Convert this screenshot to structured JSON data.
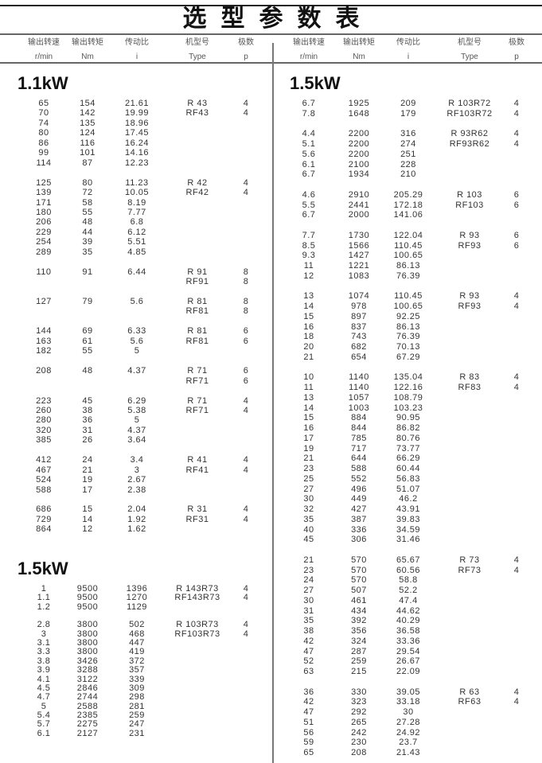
{
  "title": "选型参数表",
  "columns": [
    {
      "cn": "输出转速",
      "en": "r/min"
    },
    {
      "cn": "输出转矩",
      "en": "Nm"
    },
    {
      "cn": "传动比",
      "en": "i"
    },
    {
      "cn": "机型号",
      "en": "Type"
    },
    {
      "cn": "极数",
      "en": "p"
    }
  ],
  "sections": [
    {
      "title": "1.1kW",
      "groups": [
        {
          "types": [
            "R 43",
            "RF43"
          ],
          "poles": [
            "4",
            "4"
          ],
          "rows": [
            [
              "65",
              "154",
              "21.61"
            ],
            [
              "70",
              "142",
              "19.99"
            ],
            [
              "74",
              "135",
              "18.96"
            ],
            [
              "80",
              "124",
              "17.45"
            ],
            [
              "86",
              "116",
              "16.24"
            ],
            [
              "99",
              "101",
              "14.16"
            ],
            [
              "114",
              "87",
              "12.23"
            ]
          ]
        },
        {
          "types": [
            "R 42",
            "RF42"
          ],
          "poles": [
            "4",
            "4"
          ],
          "rows": [
            [
              "125",
              "80",
              "11.23"
            ],
            [
              "139",
              "72",
              "10.05"
            ],
            [
              "171",
              "58",
              "8.19"
            ],
            [
              "180",
              "55",
              "7.77"
            ],
            [
              "206",
              "48",
              "6.8"
            ],
            [
              "229",
              "44",
              "6.12"
            ],
            [
              "254",
              "39",
              "5.51"
            ],
            [
              "289",
              "35",
              "4.85"
            ]
          ]
        },
        {
          "types": [
            "R 91",
            "RF91"
          ],
          "poles": [
            "8",
            "8"
          ],
          "rows": [
            [
              "110",
              "91",
              "6.44"
            ],
            [
              "",
              "",
              ""
            ]
          ]
        },
        {
          "types": [
            "R 81",
            "RF81"
          ],
          "poles": [
            "8",
            "8"
          ],
          "rows": [
            [
              "127",
              "79",
              "5.6"
            ],
            [
              "",
              "",
              ""
            ]
          ]
        },
        {
          "types": [
            "R 81",
            "RF81"
          ],
          "poles": [
            "6",
            "6"
          ],
          "rows": [
            [
              "144",
              "69",
              "6.33"
            ],
            [
              "163",
              "61",
              "5.6"
            ],
            [
              "182",
              "55",
              "5"
            ]
          ]
        },
        {
          "types": [
            "R 71",
            "RF71"
          ],
          "poles": [
            "6",
            "6"
          ],
          "rows": [
            [
              "208",
              "48",
              "4.37"
            ],
            [
              "",
              "",
              ""
            ]
          ]
        },
        {
          "types": [
            "R 71",
            "RF71"
          ],
          "poles": [
            "4",
            "4"
          ],
          "rows": [
            [
              "223",
              "45",
              "6.29"
            ],
            [
              "260",
              "38",
              "5.38"
            ],
            [
              "280",
              "36",
              "5"
            ],
            [
              "320",
              "31",
              "4.37"
            ],
            [
              "385",
              "26",
              "3.64"
            ]
          ]
        },
        {
          "types": [
            "R 41",
            "RF41"
          ],
          "poles": [
            "4",
            "4"
          ],
          "rows": [
            [
              "412",
              "24",
              "3.4"
            ],
            [
              "467",
              "21",
              "3"
            ],
            [
              "524",
              "19",
              "2.67"
            ],
            [
              "588",
              "17",
              "2.38"
            ]
          ]
        },
        {
          "types": [
            "R 31",
            "RF31"
          ],
          "poles": [
            "4",
            "4"
          ],
          "rows": [
            [
              "686",
              "15",
              "2.04"
            ],
            [
              "729",
              "14",
              "1.92"
            ],
            [
              "864",
              "12",
              "1.62"
            ]
          ]
        }
      ]
    },
    {
      "title": "1.5kW",
      "groups": [
        {
          "types": [
            "R 143R73",
            "RF143R73"
          ],
          "poles": [
            "4",
            "4"
          ],
          "rows": [
            [
              "1",
              "9500",
              "1396"
            ],
            [
              "1.1",
              "9500",
              "1270"
            ],
            [
              "1.2",
              "9500",
              "1129"
            ]
          ]
        },
        {
          "types": [
            "R 103R73",
            "RF103R73"
          ],
          "poles": [
            "4",
            "4"
          ],
          "rows": [
            [
              "2.8",
              "3800",
              "502"
            ],
            [
              "3",
              "3800",
              "468"
            ],
            [
              "3.1",
              "3800",
              "447"
            ],
            [
              "3.3",
              "3800",
              "419"
            ],
            [
              "3.8",
              "3426",
              "372"
            ],
            [
              "3.9",
              "3288",
              "357"
            ],
            [
              "4.1",
              "3122",
              "339"
            ],
            [
              "4.5",
              "2846",
              "309"
            ],
            [
              "4.7",
              "2744",
              "298"
            ],
            [
              "5",
              "2588",
              "281"
            ],
            [
              "5.4",
              "2385",
              "259"
            ],
            [
              "5.7",
              "2275",
              "247"
            ],
            [
              "6.1",
              "2127",
              "231"
            ]
          ]
        }
      ]
    },
    {
      "title": "1.5kW",
      "groups": [
        {
          "types": [
            "R 103R72",
            "RF103R72"
          ],
          "poles": [
            "4",
            "4"
          ],
          "rows": [
            [
              "6.7",
              "1925",
              "209"
            ],
            [
              "7.8",
              "1648",
              "179"
            ]
          ]
        },
        {
          "types": [
            "R 93R62",
            "RF93R62"
          ],
          "poles": [
            "4",
            "4"
          ],
          "rows": [
            [
              "4.4",
              "2200",
              "316"
            ],
            [
              "5.1",
              "2200",
              "274"
            ],
            [
              "5.6",
              "2200",
              "251"
            ],
            [
              "6.1",
              "2100",
              "228"
            ],
            [
              "6.7",
              "1934",
              "210"
            ]
          ]
        },
        {
          "types": [
            "R 103",
            "RF103"
          ],
          "poles": [
            "6",
            "6"
          ],
          "rows": [
            [
              "4.6",
              "2910",
              "205.29"
            ],
            [
              "5.5",
              "2441",
              "172.18"
            ],
            [
              "6.7",
              "2000",
              "141.06"
            ]
          ]
        },
        {
          "types": [
            "R 93",
            "RF93"
          ],
          "poles": [
            "6",
            "6"
          ],
          "rows": [
            [
              "7.7",
              "1730",
              "122.04"
            ],
            [
              "8.5",
              "1566",
              "110.45"
            ],
            [
              "9.3",
              "1427",
              "100.65"
            ],
            [
              "11",
              "1221",
              "86.13"
            ],
            [
              "12",
              "1083",
              "76.39"
            ]
          ]
        },
        {
          "types": [
            "R 93",
            "RF93"
          ],
          "poles": [
            "4",
            "4"
          ],
          "rows": [
            [
              "13",
              "1074",
              "110.45"
            ],
            [
              "14",
              "978",
              "100.65"
            ],
            [
              "15",
              "897",
              "92.25"
            ],
            [
              "16",
              "837",
              "86.13"
            ],
            [
              "18",
              "743",
              "76.39"
            ],
            [
              "20",
              "682",
              "70.13"
            ],
            [
              "21",
              "654",
              "67.29"
            ]
          ]
        },
        {
          "types": [
            "R 83",
            "RF83"
          ],
          "poles": [
            "4",
            "4"
          ],
          "rows": [
            [
              "10",
              "1140",
              "135.04"
            ],
            [
              "11",
              "1140",
              "122.16"
            ],
            [
              "13",
              "1057",
              "108.79"
            ],
            [
              "14",
              "1003",
              "103.23"
            ],
            [
              "15",
              "884",
              "90.95"
            ],
            [
              "16",
              "844",
              "86.82"
            ],
            [
              "17",
              "785",
              "80.76"
            ],
            [
              "19",
              "717",
              "73.77"
            ],
            [
              "21",
              "644",
              "66.29"
            ],
            [
              "23",
              "588",
              "60.44"
            ],
            [
              "25",
              "552",
              "56.83"
            ],
            [
              "27",
              "496",
              "51.07"
            ],
            [
              "30",
              "449",
              "46.2"
            ],
            [
              "32",
              "427",
              "43.91"
            ],
            [
              "35",
              "387",
              "39.83"
            ],
            [
              "40",
              "336",
              "34.59"
            ],
            [
              "45",
              "306",
              "31.46"
            ]
          ]
        },
        {
          "types": [
            "R 73",
            "RF73"
          ],
          "poles": [
            "4",
            "4"
          ],
          "rows": [
            [
              "21",
              "570",
              "65.67"
            ],
            [
              "23",
              "570",
              "60.56"
            ],
            [
              "24",
              "570",
              "58.8"
            ],
            [
              "27",
              "507",
              "52.2"
            ],
            [
              "30",
              "461",
              "47.4"
            ],
            [
              "31",
              "434",
              "44.62"
            ],
            [
              "35",
              "392",
              "40.29"
            ],
            [
              "38",
              "356",
              "36.58"
            ],
            [
              "42",
              "324",
              "33.36"
            ],
            [
              "47",
              "287",
              "29.54"
            ],
            [
              "52",
              "259",
              "26.67"
            ],
            [
              "63",
              "215",
              "22.09"
            ]
          ]
        },
        {
          "types": [
            "R 63",
            "RF63"
          ],
          "poles": [
            "4",
            "4"
          ],
          "rows": [
            [
              "36",
              "330",
              "39.05"
            ],
            [
              "42",
              "323",
              "33.18"
            ],
            [
              "47",
              "292",
              "30"
            ],
            [
              "51",
              "265",
              "27.28"
            ],
            [
              "56",
              "242",
              "24.92"
            ],
            [
              "59",
              "230",
              "23.7"
            ],
            [
              "65",
              "208",
              "21.43"
            ]
          ]
        }
      ]
    }
  ]
}
